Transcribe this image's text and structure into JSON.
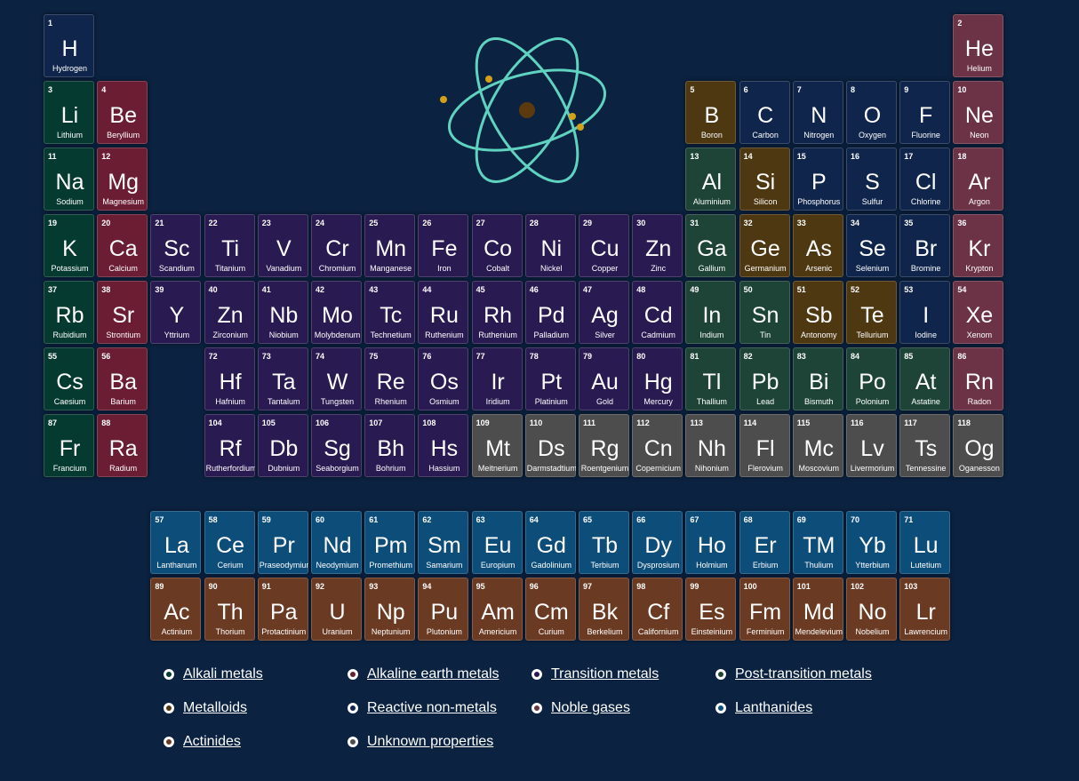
{
  "colors": {
    "background": "#0b2240",
    "alkali": "#053a30",
    "alkaline": "#6a1d33",
    "transition": "#2a1a52",
    "post": "#1d4436",
    "metalloid": "#4e3812",
    "nonmetal": "#10254c",
    "noble": "#6b3345",
    "lanth": "#0d4d7a",
    "actin": "#6b3a22",
    "unknown": "#4d4d4d",
    "atom_orbit": "#5fd3c0",
    "atom_nucleus": "#5c3a10",
    "atom_electron": "#d4a017"
  },
  "atom_icon": "atom-icon",
  "elements": [
    {
      "n": "1",
      "s": "H",
      "name": "Hydrogen",
      "p": 1,
      "g": 1,
      "c": "nonmetal"
    },
    {
      "n": "2",
      "s": "He",
      "name": "Helium",
      "p": 1,
      "g": 18,
      "c": "noble"
    },
    {
      "n": "3",
      "s": "Li",
      "name": "Lithium",
      "p": 2,
      "g": 1,
      "c": "alkali"
    },
    {
      "n": "4",
      "s": "Be",
      "name": "Beryllium",
      "p": 2,
      "g": 2,
      "c": "alkaline"
    },
    {
      "n": "5",
      "s": "B",
      "name": "Boron",
      "p": 2,
      "g": 13,
      "c": "metalloid"
    },
    {
      "n": "6",
      "s": "C",
      "name": "Carbon",
      "p": 2,
      "g": 14,
      "c": "nonmetal"
    },
    {
      "n": "7",
      "s": "N",
      "name": "Nitrogen",
      "p": 2,
      "g": 15,
      "c": "nonmetal"
    },
    {
      "n": "8",
      "s": "O",
      "name": "Oxygen",
      "p": 2,
      "g": 16,
      "c": "nonmetal"
    },
    {
      "n": "9",
      "s": "F",
      "name": "Fluorine",
      "p": 2,
      "g": 17,
      "c": "nonmetal"
    },
    {
      "n": "10",
      "s": "Ne",
      "name": "Neon",
      "p": 2,
      "g": 18,
      "c": "noble"
    },
    {
      "n": "11",
      "s": "Na",
      "name": "Sodium",
      "p": 3,
      "g": 1,
      "c": "alkali"
    },
    {
      "n": "12",
      "s": "Mg",
      "name": "Magnesium",
      "p": 3,
      "g": 2,
      "c": "alkaline"
    },
    {
      "n": "13",
      "s": "Al",
      "name": "Aluminium",
      "p": 3,
      "g": 13,
      "c": "post"
    },
    {
      "n": "14",
      "s": "Si",
      "name": "Silicon",
      "p": 3,
      "g": 14,
      "c": "metalloid"
    },
    {
      "n": "15",
      "s": "P",
      "name": "Phosphorus",
      "p": 3,
      "g": 15,
      "c": "nonmetal"
    },
    {
      "n": "16",
      "s": "S",
      "name": "Sulfur",
      "p": 3,
      "g": 16,
      "c": "nonmetal"
    },
    {
      "n": "17",
      "s": "Cl",
      "name": "Chlorine",
      "p": 3,
      "g": 17,
      "c": "nonmetal"
    },
    {
      "n": "18",
      "s": "Ar",
      "name": "Argon",
      "p": 3,
      "g": 18,
      "c": "noble"
    },
    {
      "n": "19",
      "s": "K",
      "name": "Potassium",
      "p": 4,
      "g": 1,
      "c": "alkali"
    },
    {
      "n": "20",
      "s": "Ca",
      "name": "Calcium",
      "p": 4,
      "g": 2,
      "c": "alkaline"
    },
    {
      "n": "21",
      "s": "Sc",
      "name": "Scandium",
      "p": 4,
      "g": 3,
      "c": "transition"
    },
    {
      "n": "22",
      "s": "Ti",
      "name": "Titanium",
      "p": 4,
      "g": 4,
      "c": "transition"
    },
    {
      "n": "23",
      "s": "V",
      "name": "Vanadium",
      "p": 4,
      "g": 5,
      "c": "transition"
    },
    {
      "n": "24",
      "s": "Cr",
      "name": "Chromium",
      "p": 4,
      "g": 6,
      "c": "transition"
    },
    {
      "n": "25",
      "s": "Mn",
      "name": "Manganese",
      "p": 4,
      "g": 7,
      "c": "transition"
    },
    {
      "n": "26",
      "s": "Fe",
      "name": "Iron",
      "p": 4,
      "g": 8,
      "c": "transition"
    },
    {
      "n": "27",
      "s": "Co",
      "name": "Cobalt",
      "p": 4,
      "g": 9,
      "c": "transition"
    },
    {
      "n": "28",
      "s": "Ni",
      "name": "Nickel",
      "p": 4,
      "g": 10,
      "c": "transition"
    },
    {
      "n": "29",
      "s": "Cu",
      "name": "Copper",
      "p": 4,
      "g": 11,
      "c": "transition"
    },
    {
      "n": "30",
      "s": "Zn",
      "name": "Zinc",
      "p": 4,
      "g": 12,
      "c": "transition"
    },
    {
      "n": "31",
      "s": "Ga",
      "name": "Gallium",
      "p": 4,
      "g": 13,
      "c": "post"
    },
    {
      "n": "32",
      "s": "Ge",
      "name": "Germanium",
      "p": 4,
      "g": 14,
      "c": "metalloid"
    },
    {
      "n": "33",
      "s": "As",
      "name": "Arsenic",
      "p": 4,
      "g": 15,
      "c": "metalloid"
    },
    {
      "n": "34",
      "s": "Se",
      "name": "Selenium",
      "p": 4,
      "g": 16,
      "c": "nonmetal"
    },
    {
      "n": "35",
      "s": "Br",
      "name": "Bromine",
      "p": 4,
      "g": 17,
      "c": "nonmetal"
    },
    {
      "n": "36",
      "s": "Kr",
      "name": "Krypton",
      "p": 4,
      "g": 18,
      "c": "noble"
    },
    {
      "n": "37",
      "s": "Rb",
      "name": "Rubidium",
      "p": 5,
      "g": 1,
      "c": "alkali"
    },
    {
      "n": "38",
      "s": "Sr",
      "name": "Strontium",
      "p": 5,
      "g": 2,
      "c": "alkaline"
    },
    {
      "n": "39",
      "s": "Y",
      "name": "Yttrium",
      "p": 5,
      "g": 3,
      "c": "transition"
    },
    {
      "n": "40",
      "s": "Zn",
      "name": "Zirconium",
      "p": 5,
      "g": 4,
      "c": "transition"
    },
    {
      "n": "41",
      "s": "Nb",
      "name": "Niobium",
      "p": 5,
      "g": 5,
      "c": "transition"
    },
    {
      "n": "42",
      "s": "Mo",
      "name": "Molybdenum",
      "p": 5,
      "g": 6,
      "c": "transition"
    },
    {
      "n": "43",
      "s": "Tc",
      "name": "Technetium",
      "p": 5,
      "g": 7,
      "c": "transition"
    },
    {
      "n": "44",
      "s": "Ru",
      "name": "Ruthenium",
      "p": 5,
      "g": 8,
      "c": "transition"
    },
    {
      "n": "45",
      "s": "Rh",
      "name": "Ruthenium",
      "p": 5,
      "g": 9,
      "c": "transition"
    },
    {
      "n": "46",
      "s": "Pd",
      "name": "Palladium",
      "p": 5,
      "g": 10,
      "c": "transition"
    },
    {
      "n": "47",
      "s": "Ag",
      "name": "Silver",
      "p": 5,
      "g": 11,
      "c": "transition"
    },
    {
      "n": "48",
      "s": "Cd",
      "name": "Cadmium",
      "p": 5,
      "g": 12,
      "c": "transition"
    },
    {
      "n": "49",
      "s": "In",
      "name": "Indium",
      "p": 5,
      "g": 13,
      "c": "post"
    },
    {
      "n": "50",
      "s": "Sn",
      "name": "Tin",
      "p": 5,
      "g": 14,
      "c": "post"
    },
    {
      "n": "51",
      "s": "Sb",
      "name": "Antonomy",
      "p": 5,
      "g": 15,
      "c": "metalloid"
    },
    {
      "n": "52",
      "s": "Te",
      "name": "Tellurium",
      "p": 5,
      "g": 16,
      "c": "metalloid"
    },
    {
      "n": "53",
      "s": "I",
      "name": "Iodine",
      "p": 5,
      "g": 17,
      "c": "nonmetal"
    },
    {
      "n": "54",
      "s": "Xe",
      "name": "Xenom",
      "p": 5,
      "g": 18,
      "c": "noble"
    },
    {
      "n": "55",
      "s": "Cs",
      "name": "Caesium",
      "p": 6,
      "g": 1,
      "c": "alkali"
    },
    {
      "n": "56",
      "s": "Ba",
      "name": "Barium",
      "p": 6,
      "g": 2,
      "c": "alkaline"
    },
    {
      "n": "72",
      "s": "Hf",
      "name": "Hafnium",
      "p": 6,
      "g": 4,
      "c": "transition"
    },
    {
      "n": "73",
      "s": "Ta",
      "name": "Tantalum",
      "p": 6,
      "g": 5,
      "c": "transition"
    },
    {
      "n": "74",
      "s": "W",
      "name": "Tungsten",
      "p": 6,
      "g": 6,
      "c": "transition"
    },
    {
      "n": "75",
      "s": "Re",
      "name": "Rhenium",
      "p": 6,
      "g": 7,
      "c": "transition"
    },
    {
      "n": "76",
      "s": "Os",
      "name": "Osmium",
      "p": 6,
      "g": 8,
      "c": "transition"
    },
    {
      "n": "77",
      "s": "Ir",
      "name": "Iridium",
      "p": 6,
      "g": 9,
      "c": "transition"
    },
    {
      "n": "78",
      "s": "Pt",
      "name": "Platinium",
      "p": 6,
      "g": 10,
      "c": "transition"
    },
    {
      "n": "79",
      "s": "Au",
      "name": "Gold",
      "p": 6,
      "g": 11,
      "c": "transition"
    },
    {
      "n": "80",
      "s": "Hg",
      "name": "Mercury",
      "p": 6,
      "g": 12,
      "c": "transition"
    },
    {
      "n": "81",
      "s": "Tl",
      "name": "Thallium",
      "p": 6,
      "g": 13,
      "c": "post"
    },
    {
      "n": "82",
      "s": "Pb",
      "name": "Lead",
      "p": 6,
      "g": 14,
      "c": "post"
    },
    {
      "n": "83",
      "s": "Bi",
      "name": "Bismuth",
      "p": 6,
      "g": 15,
      "c": "post"
    },
    {
      "n": "84",
      "s": "Po",
      "name": "Polonium",
      "p": 6,
      "g": 16,
      "c": "post"
    },
    {
      "n": "85",
      "s": "At",
      "name": "Astatine",
      "p": 6,
      "g": 17,
      "c": "post"
    },
    {
      "n": "86",
      "s": "Rn",
      "name": "Radon",
      "p": 6,
      "g": 18,
      "c": "noble"
    },
    {
      "n": "87",
      "s": "Fr",
      "name": "Francium",
      "p": 7,
      "g": 1,
      "c": "alkali"
    },
    {
      "n": "88",
      "s": "Ra",
      "name": "Radium",
      "p": 7,
      "g": 2,
      "c": "alkaline"
    },
    {
      "n": "104",
      "s": "Rf",
      "name": "Rutherfordium",
      "p": 7,
      "g": 4,
      "c": "transition"
    },
    {
      "n": "105",
      "s": "Db",
      "name": "Dubnium",
      "p": 7,
      "g": 5,
      "c": "transition"
    },
    {
      "n": "106",
      "s": "Sg",
      "name": "Seaborgium",
      "p": 7,
      "g": 6,
      "c": "transition"
    },
    {
      "n": "107",
      "s": "Bh",
      "name": "Bohrium",
      "p": 7,
      "g": 7,
      "c": "transition"
    },
    {
      "n": "108",
      "s": "Hs",
      "name": "Hassium",
      "p": 7,
      "g": 8,
      "c": "transition"
    },
    {
      "n": "109",
      "s": "Mt",
      "name": "Meitnerium",
      "p": 7,
      "g": 9,
      "c": "unknown"
    },
    {
      "n": "110",
      "s": "Ds",
      "name": "Darmstadtium",
      "p": 7,
      "g": 10,
      "c": "unknown"
    },
    {
      "n": "111",
      "s": "Rg",
      "name": "Roentgenium",
      "p": 7,
      "g": 11,
      "c": "unknown"
    },
    {
      "n": "112",
      "s": "Cn",
      "name": "Copernicium",
      "p": 7,
      "g": 12,
      "c": "unknown"
    },
    {
      "n": "113",
      "s": "Nh",
      "name": "Nihonium",
      "p": 7,
      "g": 13,
      "c": "unknown"
    },
    {
      "n": "114",
      "s": "Fl",
      "name": "Flerovium",
      "p": 7,
      "g": 14,
      "c": "unknown"
    },
    {
      "n": "115",
      "s": "Mc",
      "name": "Moscovium",
      "p": 7,
      "g": 15,
      "c": "unknown"
    },
    {
      "n": "116",
      "s": "Lv",
      "name": "Livermorium",
      "p": 7,
      "g": 16,
      "c": "unknown"
    },
    {
      "n": "117",
      "s": "Ts",
      "name": "Tennessine",
      "p": 7,
      "g": 17,
      "c": "unknown"
    },
    {
      "n": "118",
      "s": "Og",
      "name": "Oganesson",
      "p": 7,
      "g": 18,
      "c": "unknown"
    },
    {
      "n": "57",
      "s": "La",
      "name": "Lanthanum",
      "p": 8,
      "g": 3,
      "c": "lanth"
    },
    {
      "n": "58",
      "s": "Ce",
      "name": "Cerium",
      "p": 8,
      "g": 4,
      "c": "lanth"
    },
    {
      "n": "59",
      "s": "Pr",
      "name": "Praseodymium",
      "p": 8,
      "g": 5,
      "c": "lanth"
    },
    {
      "n": "60",
      "s": "Nd",
      "name": "Neodymium",
      "p": 8,
      "g": 6,
      "c": "lanth"
    },
    {
      "n": "61",
      "s": "Pm",
      "name": "Promethium",
      "p": 8,
      "g": 7,
      "c": "lanth"
    },
    {
      "n": "62",
      "s": "Sm",
      "name": "Samarium",
      "p": 8,
      "g": 8,
      "c": "lanth"
    },
    {
      "n": "63",
      "s": "Eu",
      "name": "Europium",
      "p": 8,
      "g": 9,
      "c": "lanth"
    },
    {
      "n": "64",
      "s": "Gd",
      "name": "Gadolinium",
      "p": 8,
      "g": 10,
      "c": "lanth"
    },
    {
      "n": "65",
      "s": "Tb",
      "name": "Terbium",
      "p": 8,
      "g": 11,
      "c": "lanth"
    },
    {
      "n": "66",
      "s": "Dy",
      "name": "Dysprosium",
      "p": 8,
      "g": 12,
      "c": "lanth"
    },
    {
      "n": "67",
      "s": "Ho",
      "name": "Holmium",
      "p": 8,
      "g": 13,
      "c": "lanth"
    },
    {
      "n": "68",
      "s": "Er",
      "name": "Erbium",
      "p": 8,
      "g": 14,
      "c": "lanth"
    },
    {
      "n": "69",
      "s": "TM",
      "name": "Thulium",
      "p": 8,
      "g": 15,
      "c": "lanth"
    },
    {
      "n": "70",
      "s": "Yb",
      "name": "Ytterbium",
      "p": 8,
      "g": 16,
      "c": "lanth"
    },
    {
      "n": "71",
      "s": "Lu",
      "name": "Lutetium",
      "p": 8,
      "g": 17,
      "c": "lanth"
    },
    {
      "n": "89",
      "s": "Ac",
      "name": "Actinium",
      "p": 9,
      "g": 3,
      "c": "actin"
    },
    {
      "n": "90",
      "s": "Th",
      "name": "Thorium",
      "p": 9,
      "g": 4,
      "c": "actin"
    },
    {
      "n": "91",
      "s": "Pa",
      "name": "Protactinium",
      "p": 9,
      "g": 5,
      "c": "actin"
    },
    {
      "n": "92",
      "s": "U",
      "name": "Uranium",
      "p": 9,
      "g": 6,
      "c": "actin"
    },
    {
      "n": "93",
      "s": "Np",
      "name": "Neptunium",
      "p": 9,
      "g": 7,
      "c": "actin"
    },
    {
      "n": "94",
      "s": "Pu",
      "name": "Plutonium",
      "p": 9,
      "g": 8,
      "c": "actin"
    },
    {
      "n": "95",
      "s": "Am",
      "name": "Americium",
      "p": 9,
      "g": 9,
      "c": "actin"
    },
    {
      "n": "96",
      "s": "Cm",
      "name": "Curium",
      "p": 9,
      "g": 10,
      "c": "actin"
    },
    {
      "n": "97",
      "s": "Bk",
      "name": "Berkelium",
      "p": 9,
      "g": 11,
      "c": "actin"
    },
    {
      "n": "98",
      "s": "Cf",
      "name": "Californium",
      "p": 9,
      "g": 12,
      "c": "actin"
    },
    {
      "n": "99",
      "s": "Es",
      "name": "Einsteinium",
      "p": 9,
      "g": 13,
      "c": "actin"
    },
    {
      "n": "100",
      "s": "Fm",
      "name": "Ferminium",
      "p": 9,
      "g": 14,
      "c": "actin"
    },
    {
      "n": "101",
      "s": "Md",
      "name": "Mendelevium",
      "p": 9,
      "g": 15,
      "c": "actin"
    },
    {
      "n": "102",
      "s": "No",
      "name": "Nobelium",
      "p": 9,
      "g": 16,
      "c": "actin"
    },
    {
      "n": "103",
      "s": "Lr",
      "name": "Lawrencium",
      "p": 9,
      "g": 17,
      "c": "actin"
    }
  ],
  "legend": [
    {
      "label": "Alkali metals",
      "c": "alkali",
      "ring": "#ffffff"
    },
    {
      "label": "Alkaline earth metals",
      "c": "alkaline",
      "ring": "#ffffff"
    },
    {
      "label": "Transition metals",
      "c": "transition",
      "ring": "#ffffff"
    },
    {
      "label": "Post-transition metals",
      "c": "post",
      "ring": "#ffffff"
    },
    {
      "label": "Metalloids",
      "c": "metalloid",
      "ring": "#ffffff"
    },
    {
      "label": "Reactive non-metals",
      "c": "nonmetal",
      "ring": "#ffffff"
    },
    {
      "label": "Noble gases",
      "c": "noble",
      "ring": "#ffffff"
    },
    {
      "label": "Lanthanides",
      "c": "lanth",
      "ring": "#ffffff"
    },
    {
      "label": "Actinides",
      "c": "actin",
      "ring": "#ffffff"
    },
    {
      "label": "Unknown properties",
      "c": "unknown",
      "ring": "#ffffff"
    }
  ]
}
